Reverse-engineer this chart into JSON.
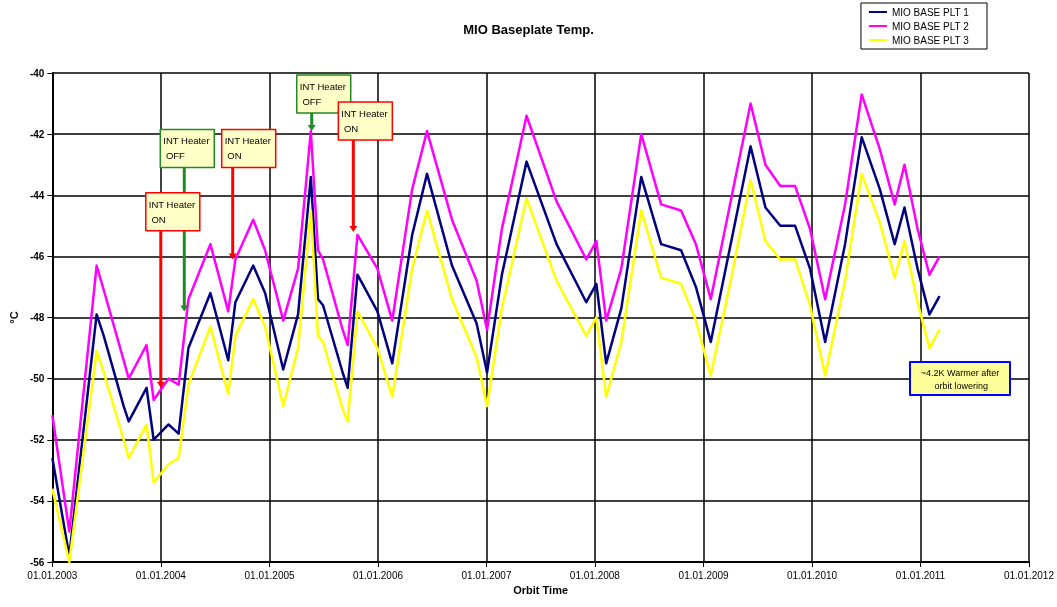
{
  "chart_data": {
    "type": "line",
    "title": "MIO Baseplate Temp.",
    "xlabel": "Orbit Time",
    "ylabel": "°C",
    "x": [
      "2003-01-01",
      "2003-02-27",
      "2003-05-30",
      "2003-06-23",
      "2003-08-29",
      "2003-09-15",
      "2003-11-14",
      "2003-12-08",
      "2004-01-27",
      "2004-03-01",
      "2004-04-03",
      "2004-06-16",
      "2004-08-15",
      "2004-09-08",
      "2004-11-07",
      "2004-12-17",
      "2005-02-16",
      "2005-04-07",
      "2005-05-20",
      "2005-06-13",
      "2005-06-30",
      "2005-09-04",
      "2005-09-21",
      "2005-10-24",
      "2005-12-30",
      "2006-02-18",
      "2006-04-26",
      "2006-06-15",
      "2006-09-07",
      "2006-11-29",
      "2007-01-03",
      "2007-02-22",
      "2007-05-16",
      "2007-08-25",
      "2007-12-03",
      "2008-01-06",
      "2008-02-08",
      "2008-03-30",
      "2008-06-05",
      "2008-08-11",
      "2008-10-17",
      "2008-12-06",
      "2009-01-25",
      "2009-04-02",
      "2009-06-08",
      "2009-07-28",
      "2009-09-16",
      "2009-11-05",
      "2009-12-25",
      "2010-02-14",
      "2010-04-22",
      "2010-06-17",
      "2010-08-17",
      "2010-10-06",
      "2010-11-08",
      "2010-12-22",
      "2011-01-31",
      "2011-03-06"
    ],
    "series": [
      {
        "name": "MIO BASE PLT 1",
        "color": "#000080",
        "values": [
          -52.6,
          -55.8,
          -47.9,
          -48.6,
          -50.9,
          -51.4,
          -50.3,
          -52.0,
          -51.5,
          -51.8,
          -49.0,
          -47.2,
          -49.4,
          -47.5,
          -46.3,
          -47.2,
          -49.7,
          -47.9,
          -43.4,
          -47.4,
          -47.6,
          -49.8,
          -50.3,
          -46.6,
          -47.8,
          -49.5,
          -45.3,
          -43.3,
          -46.3,
          -48.2,
          -49.8,
          -46.6,
          -42.9,
          -45.6,
          -47.5,
          -46.9,
          -49.5,
          -47.7,
          -43.4,
          -45.6,
          -45.8,
          -47.0,
          -48.8,
          -45.6,
          -42.4,
          -44.4,
          -45.0,
          -45.0,
          -46.4,
          -48.8,
          -45.6,
          -42.1,
          -43.8,
          -45.6,
          -44.4,
          -46.4,
          -47.9,
          -47.3
        ]
      },
      {
        "name": "MIO BASE PLT 2",
        "color": "#ff00ff",
        "values": [
          -51.2,
          -55.0,
          -46.3,
          -47.1,
          -49.4,
          -50.0,
          -48.9,
          -50.7,
          -50.0,
          -50.2,
          -47.4,
          -45.6,
          -47.8,
          -46.1,
          -44.8,
          -45.8,
          -48.1,
          -46.4,
          -41.9,
          -45.8,
          -46.1,
          -48.4,
          -48.9,
          -45.3,
          -46.4,
          -48.1,
          -43.8,
          -41.9,
          -44.8,
          -46.8,
          -48.4,
          -45.1,
          -41.4,
          -44.2,
          -46.1,
          -45.5,
          -48.1,
          -46.4,
          -42.0,
          -44.3,
          -44.5,
          -45.6,
          -47.4,
          -44.2,
          -41.0,
          -43.0,
          -43.7,
          -43.7,
          -45.1,
          -47.4,
          -44.3,
          -40.7,
          -42.5,
          -44.3,
          -43.0,
          -45.1,
          -46.6,
          -46.0
        ]
      },
      {
        "name": "MIO BASE PLT 3",
        "color": "#ffff00",
        "values": [
          -53.6,
          -56.0,
          -49.1,
          -49.8,
          -52.0,
          -52.6,
          -51.5,
          -53.4,
          -52.8,
          -52.6,
          -50.2,
          -48.3,
          -50.5,
          -48.6,
          -47.4,
          -48.3,
          -50.9,
          -49.0,
          -44.5,
          -48.6,
          -48.8,
          -51.0,
          -51.4,
          -47.8,
          -49.0,
          -50.6,
          -46.4,
          -44.5,
          -47.4,
          -49.3,
          -50.9,
          -47.7,
          -44.1,
          -46.8,
          -48.6,
          -48.0,
          -50.6,
          -48.8,
          -44.5,
          -46.7,
          -46.9,
          -48.1,
          -49.9,
          -46.8,
          -43.5,
          -45.5,
          -46.1,
          -46.1,
          -47.6,
          -49.9,
          -46.8,
          -43.3,
          -44.9,
          -46.7,
          -45.5,
          -47.5,
          -49.0,
          -48.4
        ]
      }
    ],
    "xlim": [
      "2003-01-01",
      "2012-01-01"
    ],
    "xticks": [
      {
        "value": "2003-01-01",
        "label": "01.01.2003"
      },
      {
        "value": "2004-01-01",
        "label": "01.01.2004"
      },
      {
        "value": "2005-01-01",
        "label": "01.01.2005"
      },
      {
        "value": "2006-01-01",
        "label": "01.01.2006"
      },
      {
        "value": "2007-01-01",
        "label": "01.01.2007"
      },
      {
        "value": "2008-01-01",
        "label": "01.01.2008"
      },
      {
        "value": "2009-01-01",
        "label": "01.01.2009"
      },
      {
        "value": "2010-01-01",
        "label": "01.01.2010"
      },
      {
        "value": "2011-01-01",
        "label": "01.01.2011"
      },
      {
        "value": "2012-01-01",
        "label": "01.01.2012"
      }
    ],
    "ylim": [
      -56,
      -40
    ],
    "yticks": [
      -56,
      -54,
      -52,
      -50,
      -48,
      -46,
      -44,
      -42,
      -40
    ],
    "grid": true,
    "legend": "top right",
    "marker": "none",
    "line_style": "solid",
    "annotations": [
      {
        "text": "INT Heater ON",
        "x": "2004-01-01",
        "y": -50.3
      },
      {
        "text": "INT Heater OFF",
        "x": "2004-03-20",
        "y": -47.8
      },
      {
        "text": "INT Heater ON",
        "x": "2004-08-30",
        "y": -46.1
      },
      {
        "text": "INT Heater OFF",
        "x": "2005-05-23",
        "y": -41.9
      },
      {
        "text": "INT Heater ON",
        "x": "2005-10-10",
        "y": -45.2
      },
      "~4.2K Warmer after orbit lowering"
    ]
  }
}
